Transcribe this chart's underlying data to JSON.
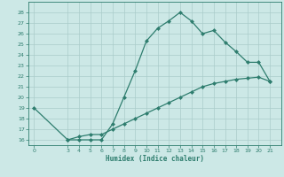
{
  "title": "",
  "xlabel": "Humidex (Indice chaleur)",
  "curve1_x": [
    0,
    3,
    4,
    5,
    6,
    7,
    8,
    9,
    10,
    11,
    12,
    13,
    14,
    15,
    16,
    17,
    18,
    19,
    20,
    21
  ],
  "curve1_y": [
    19,
    16,
    16,
    16,
    16,
    17.5,
    20,
    22.5,
    25.3,
    26.5,
    27.2,
    28,
    27.2,
    26.0,
    26.3,
    25.2,
    24.3,
    23.3,
    23.3,
    21.5
  ],
  "curve2_x": [
    3,
    4,
    5,
    6,
    7,
    8,
    9,
    10,
    11,
    12,
    13,
    14,
    15,
    16,
    17,
    18,
    19,
    20,
    21
  ],
  "curve2_y": [
    16,
    16.3,
    16.5,
    16.5,
    17.0,
    17.5,
    18.0,
    18.5,
    19.0,
    19.5,
    20.0,
    20.5,
    21.0,
    21.3,
    21.5,
    21.7,
    21.8,
    21.9,
    21.5
  ],
  "line_color": "#2e7d6e",
  "bg_color": "#cce8e6",
  "grid_color": "#aaccca",
  "ylim": [
    15.5,
    29.0
  ],
  "xlim": [
    -0.5,
    22
  ],
  "yticks": [
    16,
    17,
    18,
    19,
    20,
    21,
    22,
    23,
    24,
    25,
    26,
    27,
    28
  ],
  "xticks": [
    0,
    3,
    4,
    5,
    6,
    7,
    8,
    9,
    10,
    11,
    12,
    13,
    14,
    15,
    16,
    17,
    18,
    19,
    20,
    21
  ]
}
